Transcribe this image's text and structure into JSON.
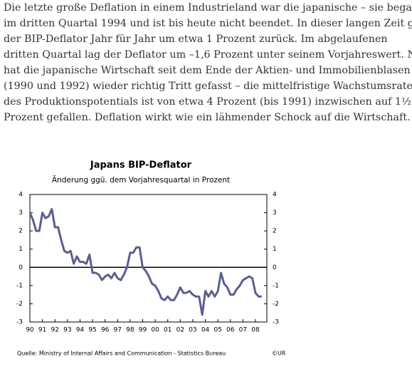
{
  "document": {
    "paragraph": [
      "Die letzte große Deflation in einem Industrieland war die japanische – sie begann",
      "im dritten Quartal 1994 und ist bis heute nicht beendet. In dieser langen Zeit ging",
      "der BIP-Deflator Jahr für Jahr um etwa 1 Prozent zurück. Im abgelaufenen",
      "dritten Quartal lag der Deflator um –1,6 Prozent unter seinem Vorjahreswert. Nie",
      "hat die japanische Wirtschaft seit dem Ende der Aktien- und Immobilienblasen",
      "(1990 und 1992) wieder richtig Tritt gefasst – die mittelfristige Wachstumsrate",
      "des Produktionspotentials ist von etwa 4 Prozent (bis 1991) inzwischen auf 1½",
      "Prozent gefallen. Deflation wirkt wie ein lähmender Schock auf die Wirtschaft."
    ]
  },
  "chart_data": {
    "type": "line",
    "title": "Japans BIP-Deflator",
    "subtitle": "Änderung ggü. dem Vorjahresquartal in Prozent",
    "source": "Quelle: Ministry of Internal Affairs and Communication - Statistics Bureau",
    "copyright": "©UR",
    "color": "#5b5f8e",
    "x": [
      1990,
      1990.25,
      1990.5,
      1990.75,
      1991,
      1991.25,
      1991.5,
      1991.75,
      1992,
      1992.25,
      1992.5,
      1992.75,
      1993,
      1993.25,
      1993.5,
      1993.75,
      1994,
      1994.25,
      1994.5,
      1994.75,
      1995,
      1995.25,
      1995.5,
      1995.75,
      1996,
      1996.25,
      1996.5,
      1996.75,
      1997,
      1997.25,
      1997.5,
      1997.75,
      1998,
      1998.25,
      1998.5,
      1998.75,
      1999,
      1999.25,
      1999.5,
      1999.75,
      2000,
      2000.25,
      2000.5,
      2000.75,
      2001,
      2001.25,
      2001.5,
      2001.75,
      2002,
      2002.25,
      2002.5,
      2002.75,
      2003,
      2003.25,
      2003.5,
      2003.75,
      2004,
      2004.25,
      2004.5,
      2004.75,
      2005,
      2005.25,
      2005.5,
      2005.75,
      2006,
      2006.25,
      2006.5,
      2006.75,
      2007,
      2007.25,
      2007.5,
      2007.75,
      2008,
      2008.25,
      2008.5
    ],
    "values": [
      3.0,
      2.6,
      2.0,
      2.0,
      3.0,
      2.7,
      2.8,
      3.2,
      2.2,
      2.2,
      1.5,
      0.9,
      0.8,
      0.9,
      0.2,
      0.6,
      0.3,
      0.3,
      0.2,
      0.7,
      -0.3,
      -0.3,
      -0.4,
      -0.7,
      -0.5,
      -0.4,
      -0.6,
      -0.3,
      -0.6,
      -0.7,
      -0.4,
      0.0,
      0.8,
      0.8,
      1.1,
      1.1,
      0.0,
      -0.2,
      -0.5,
      -0.9,
      -1.0,
      -1.3,
      -1.7,
      -1.8,
      -1.6,
      -1.8,
      -1.8,
      -1.5,
      -1.1,
      -1.4,
      -1.4,
      -1.3,
      -1.5,
      -1.6,
      -1.6,
      -2.6,
      -1.3,
      -1.6,
      -1.3,
      -1.6,
      -1.3,
      -0.3,
      -0.9,
      -1.1,
      -1.5,
      -1.5,
      -1.2,
      -1.0,
      -0.7,
      -0.6,
      -0.5,
      -0.6,
      -1.4,
      -1.6,
      -1.6
    ],
    "xlim": [
      1990,
      2008.9
    ],
    "xticks": [
      {
        "value": 1990,
        "label": "90"
      },
      {
        "value": 1991,
        "label": "91"
      },
      {
        "value": 1992,
        "label": "92"
      },
      {
        "value": 1993,
        "label": "93"
      },
      {
        "value": 1994,
        "label": "94"
      },
      {
        "value": 1995,
        "label": "95"
      },
      {
        "value": 1996,
        "label": "96"
      },
      {
        "value": 1997,
        "label": "97"
      },
      {
        "value": 1998,
        "label": "98"
      },
      {
        "value": 1999,
        "label": "99"
      },
      {
        "value": 2000,
        "label": "00"
      },
      {
        "value": 2001,
        "label": "01"
      },
      {
        "value": 2002,
        "label": "02"
      },
      {
        "value": 2003,
        "label": "03"
      },
      {
        "value": 2004,
        "label": "04"
      },
      {
        "value": 2005,
        "label": "05"
      },
      {
        "value": 2006,
        "label": "06"
      },
      {
        "value": 2007,
        "label": "07"
      },
      {
        "value": 2008,
        "label": "08"
      }
    ],
    "ylim": [
      -3,
      4
    ],
    "yticks": [
      4,
      3,
      2,
      1,
      0,
      -1,
      -2,
      -3
    ],
    "zero_line": true
  }
}
